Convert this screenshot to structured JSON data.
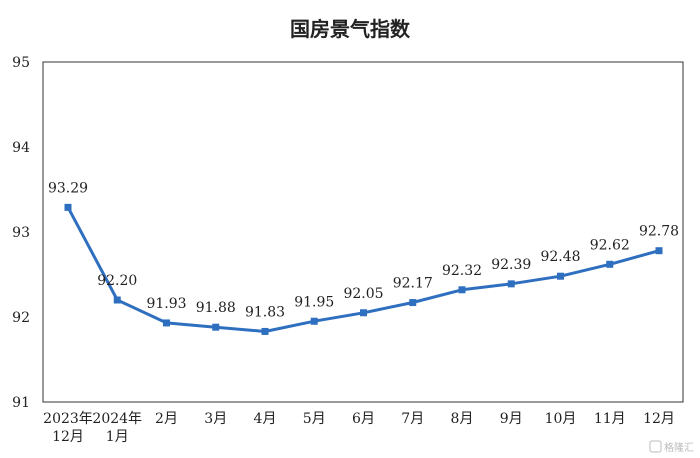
{
  "chart_data": {
    "type": "line",
    "title": "国房景气指数",
    "xlabel": "",
    "ylabel": "",
    "ylim": [
      91,
      95
    ],
    "yticks": [
      91,
      92,
      93,
      94,
      95
    ],
    "categories": [
      [
        "2023年",
        "12月"
      ],
      [
        "2024年",
        "1月"
      ],
      [
        "2月"
      ],
      [
        "3月"
      ],
      [
        "4月"
      ],
      [
        "5月"
      ],
      [
        "6月"
      ],
      [
        "7月"
      ],
      [
        "8月"
      ],
      [
        "9月"
      ],
      [
        "10月"
      ],
      [
        "11月"
      ],
      [
        "12月"
      ]
    ],
    "series": [
      {
        "values": [
          93.29,
          92.2,
          91.93,
          91.88,
          91.83,
          91.95,
          92.05,
          92.17,
          92.32,
          92.39,
          92.48,
          92.62,
          92.78
        ],
        "labels": [
          "93.29",
          "92.20",
          "91.93",
          "91.88",
          "91.83",
          "91.95",
          "92.05",
          "92.17",
          "92.32",
          "92.39",
          "92.48",
          "92.62",
          "92.78"
        ],
        "color": "#2f6fbf"
      }
    ],
    "grid": false,
    "legend": "none"
  },
  "watermark": "格隆汇"
}
